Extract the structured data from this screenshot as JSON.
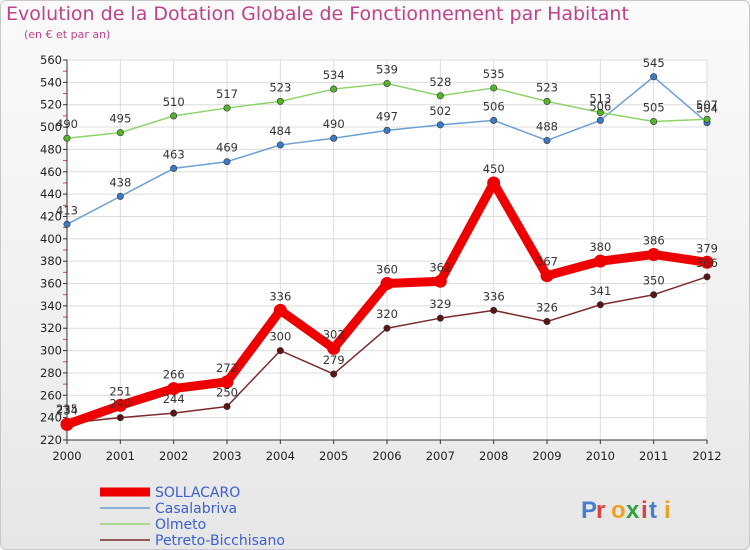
{
  "title": "Evolution de la Dotation Globale de Fonctionnement par Habitant",
  "subtitle": "(en € et par an)",
  "logo": "Proxiti",
  "chart_data": {
    "type": "line",
    "title": "Evolution de la Dotation Globale de Fonctionnement par Habitant",
    "subtitle": "(en € et par an)",
    "xlabel": "",
    "ylabel": "",
    "x": [
      "2000",
      "2001",
      "2002",
      "2003",
      "2004",
      "2005",
      "2006",
      "2007",
      "2008",
      "2009",
      "2010",
      "2011",
      "2012"
    ],
    "ylim": [
      220,
      560
    ],
    "yticks": [
      220,
      240,
      260,
      280,
      300,
      320,
      340,
      360,
      380,
      400,
      420,
      440,
      460,
      480,
      500,
      520,
      540,
      560
    ],
    "grid": true,
    "legend_position": "bottom-left",
    "series": [
      {
        "name": "SOLLACARO",
        "color": "#ee0000",
        "values": [
          234,
          251,
          266,
          272,
          336,
          302,
          360,
          362,
          450,
          367,
          380,
          386,
          379
        ],
        "labels": [
          "234",
          "251",
          "266",
          "272",
          "336",
          "302",
          "360",
          "362",
          "450",
          "367",
          "380",
          "386",
          "379"
        ]
      },
      {
        "name": "Casalabriva",
        "color": "#6d9ed3",
        "values": [
          413,
          438,
          463,
          469,
          484,
          490,
          497,
          502,
          506,
          488,
          506,
          545,
          504
        ],
        "labels": [
          "413",
          "438",
          "463",
          "469",
          "484",
          "490",
          "497",
          "502",
          "506",
          "488",
          "506",
          "545",
          "504"
        ]
      },
      {
        "name": "Olmeto",
        "color": "#8fd36b",
        "values": [
          490,
          495,
          510,
          517,
          523,
          534,
          539,
          528,
          535,
          523,
          513,
          505,
          507
        ],
        "labels": [
          "490",
          "495",
          "510",
          "517",
          "523",
          "534",
          "539",
          "528",
          "535",
          "523",
          "513",
          "505",
          "507"
        ]
      },
      {
        "name": "Petreto-Bicchisano",
        "color": "#7a2a2a",
        "values": [
          235,
          240,
          244,
          250,
          300,
          279,
          320,
          329,
          336,
          326,
          341,
          350,
          366
        ],
        "labels": [
          "235",
          "240",
          "244",
          "250",
          "300",
          "279",
          "320",
          "329",
          "336",
          "326",
          "341",
          "350",
          "366"
        ]
      }
    ]
  }
}
